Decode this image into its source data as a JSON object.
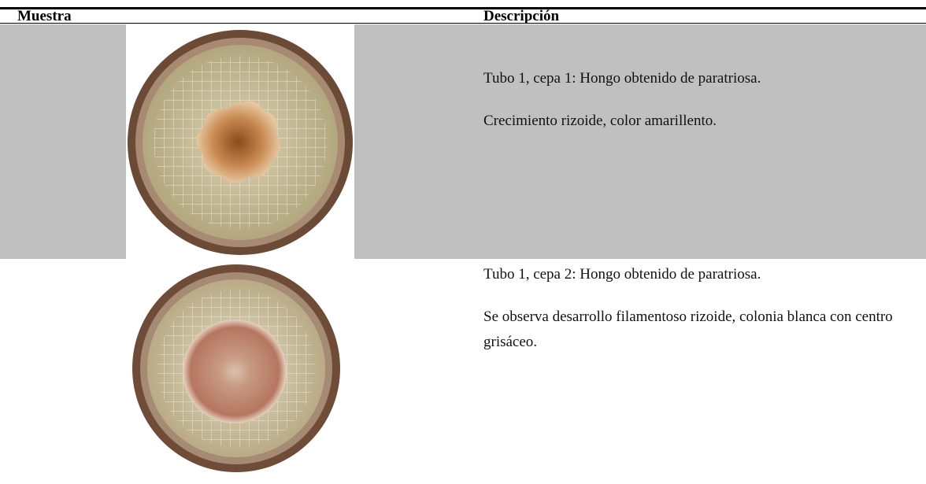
{
  "header": {
    "columns": [
      "Muestra",
      "Descripción"
    ]
  },
  "rows": [
    {
      "paragraphs": [
        "Tubo 1, cepa 1: Hongo obtenido de paratriosa.",
        "Crecimiento rizoide, color amarillento."
      ]
    },
    {
      "paragraphs": [
        "Tubo 1, cepa 2: Hongo obtenido de paratriosa.",
        "Se observa desarrollo filamentoso rizoide, colonia blanca con centro grisáceo."
      ]
    }
  ]
}
